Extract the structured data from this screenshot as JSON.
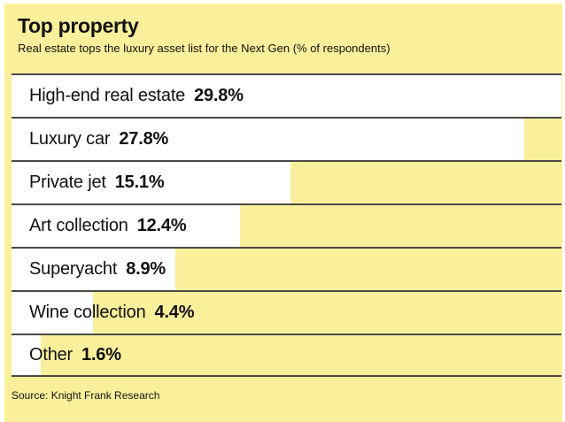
{
  "chart_data": {
    "type": "bar",
    "orientation": "horizontal",
    "title": "Top property",
    "subtitle": "Real estate tops the luxury asset list for the Next Gen (% of respondents)",
    "categories": [
      "High-end real estate",
      "Luxury car",
      "Private jet",
      "Art collection",
      "Superyacht",
      "Wine collection",
      "Other"
    ],
    "values": [
      29.8,
      27.8,
      15.1,
      12.4,
      8.9,
      4.4,
      1.6
    ],
    "display_values": [
      "29.8%",
      "27.8%",
      "15.1%",
      "12.4%",
      "8.9%",
      "4.4%",
      "1.6%"
    ],
    "value_suffix": "%",
    "xlim": [
      0,
      29.8
    ],
    "bar_scale_max": 29.8,
    "legend": "none",
    "grid": "row-separator-lines"
  },
  "source": "Source: Knight Frank Research",
  "theme": {
    "background_yellow": "#FAF09B",
    "page_border_white": "#FFFFFF",
    "bar_fill_white": "#FFFFFF",
    "separator_gray": "#4A4A46",
    "text_black": "#111111"
  }
}
